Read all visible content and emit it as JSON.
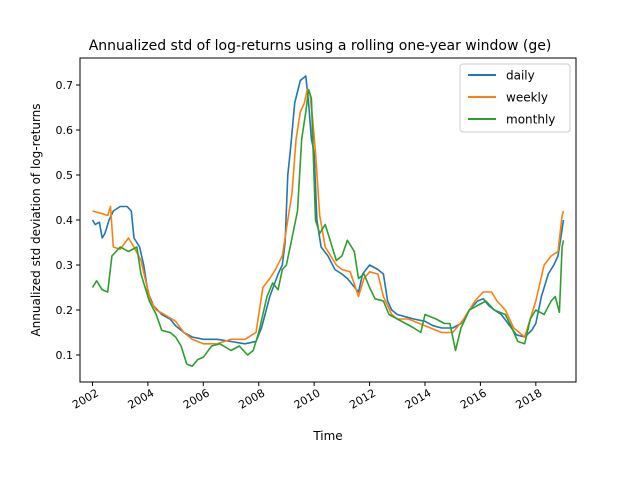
{
  "chart_data": {
    "type": "line",
    "title": "Annualized std of log-returns using a rolling one-year window (ge)",
    "xlabel": "Time",
    "ylabel": "Annualized std deviation of log-returns",
    "xlim": [
      2001.55,
      2019.45
    ],
    "ylim": [
      0.04,
      0.76
    ],
    "xticks": [
      2002,
      2004,
      2006,
      2008,
      2010,
      2012,
      2014,
      2016,
      2018
    ],
    "xtick_labels": [
      "2002",
      "2004",
      "2006",
      "2008",
      "2010",
      "2012",
      "2014",
      "2016",
      "2018"
    ],
    "yticks": [
      0.1,
      0.2,
      0.3,
      0.4,
      0.5,
      0.6,
      0.7
    ],
    "ytick_labels": [
      "0.1",
      "0.2",
      "0.3",
      "0.4",
      "0.5",
      "0.6",
      "0.7"
    ],
    "legend_position": "top-right",
    "grid": false,
    "series": [
      {
        "name": "daily",
        "color": "#1f77b4",
        "points": [
          [
            2002.0,
            0.4
          ],
          [
            2002.1,
            0.39
          ],
          [
            2002.25,
            0.395
          ],
          [
            2002.35,
            0.36
          ],
          [
            2002.45,
            0.37
          ],
          [
            2002.6,
            0.4
          ],
          [
            2002.75,
            0.42
          ],
          [
            2003.0,
            0.43
          ],
          [
            2003.25,
            0.43
          ],
          [
            2003.4,
            0.42
          ],
          [
            2003.5,
            0.36
          ],
          [
            2003.7,
            0.34
          ],
          [
            2003.85,
            0.3
          ],
          [
            2004.0,
            0.24
          ],
          [
            2004.2,
            0.21
          ],
          [
            2004.5,
            0.19
          ],
          [
            2004.8,
            0.18
          ],
          [
            2005.0,
            0.165
          ],
          [
            2005.3,
            0.15
          ],
          [
            2005.6,
            0.14
          ],
          [
            2006.0,
            0.135
          ],
          [
            2006.5,
            0.135
          ],
          [
            2007.0,
            0.13
          ],
          [
            2007.5,
            0.125
          ],
          [
            2007.9,
            0.13
          ],
          [
            2008.1,
            0.16
          ],
          [
            2008.4,
            0.23
          ],
          [
            2008.7,
            0.28
          ],
          [
            2008.85,
            0.3
          ],
          [
            2008.95,
            0.35
          ],
          [
            2009.05,
            0.5
          ],
          [
            2009.15,
            0.56
          ],
          [
            2009.3,
            0.66
          ],
          [
            2009.5,
            0.71
          ],
          [
            2009.7,
            0.72
          ],
          [
            2009.8,
            0.66
          ],
          [
            2009.9,
            0.58
          ],
          [
            2010.0,
            0.55
          ],
          [
            2010.1,
            0.4
          ],
          [
            2010.25,
            0.34
          ],
          [
            2010.5,
            0.32
          ],
          [
            2010.75,
            0.29
          ],
          [
            2011.0,
            0.28
          ],
          [
            2011.2,
            0.27
          ],
          [
            2011.4,
            0.255
          ],
          [
            2011.6,
            0.24
          ],
          [
            2011.75,
            0.28
          ],
          [
            2012.0,
            0.3
          ],
          [
            2012.3,
            0.29
          ],
          [
            2012.5,
            0.28
          ],
          [
            2012.65,
            0.22
          ],
          [
            2012.8,
            0.2
          ],
          [
            2013.0,
            0.19
          ],
          [
            2013.3,
            0.185
          ],
          [
            2013.6,
            0.18
          ],
          [
            2014.0,
            0.175
          ],
          [
            2014.3,
            0.165
          ],
          [
            2014.6,
            0.16
          ],
          [
            2015.0,
            0.16
          ],
          [
            2015.3,
            0.17
          ],
          [
            2015.6,
            0.2
          ],
          [
            2015.9,
            0.22
          ],
          [
            2016.1,
            0.225
          ],
          [
            2016.3,
            0.21
          ],
          [
            2016.5,
            0.2
          ],
          [
            2016.75,
            0.19
          ],
          [
            2017.0,
            0.17
          ],
          [
            2017.3,
            0.145
          ],
          [
            2017.6,
            0.14
          ],
          [
            2017.85,
            0.155
          ],
          [
            2018.0,
            0.17
          ],
          [
            2018.2,
            0.23
          ],
          [
            2018.45,
            0.28
          ],
          [
            2018.65,
            0.3
          ],
          [
            2018.8,
            0.32
          ],
          [
            2019.0,
            0.4
          ]
        ]
      },
      {
        "name": "weekly",
        "color": "#ff7f0e",
        "points": [
          [
            2002.0,
            0.42
          ],
          [
            2002.3,
            0.415
          ],
          [
            2002.55,
            0.41
          ],
          [
            2002.65,
            0.43
          ],
          [
            2002.75,
            0.34
          ],
          [
            2003.0,
            0.335
          ],
          [
            2003.3,
            0.36
          ],
          [
            2003.5,
            0.34
          ],
          [
            2003.75,
            0.31
          ],
          [
            2003.9,
            0.27
          ],
          [
            2004.1,
            0.22
          ],
          [
            2004.3,
            0.2
          ],
          [
            2004.6,
            0.19
          ],
          [
            2005.0,
            0.175
          ],
          [
            2005.3,
            0.15
          ],
          [
            2005.6,
            0.135
          ],
          [
            2006.0,
            0.125
          ],
          [
            2006.5,
            0.125
          ],
          [
            2007.0,
            0.135
          ],
          [
            2007.5,
            0.135
          ],
          [
            2007.9,
            0.15
          ],
          [
            2008.15,
            0.25
          ],
          [
            2008.4,
            0.27
          ],
          [
            2008.6,
            0.29
          ],
          [
            2008.85,
            0.32
          ],
          [
            2009.05,
            0.4
          ],
          [
            2009.2,
            0.46
          ],
          [
            2009.35,
            0.58
          ],
          [
            2009.5,
            0.64
          ],
          [
            2009.65,
            0.66
          ],
          [
            2009.75,
            0.69
          ],
          [
            2009.85,
            0.68
          ],
          [
            2009.95,
            0.62
          ],
          [
            2010.05,
            0.55
          ],
          [
            2010.2,
            0.41
          ],
          [
            2010.4,
            0.34
          ],
          [
            2010.6,
            0.32
          ],
          [
            2010.8,
            0.3
          ],
          [
            2011.0,
            0.29
          ],
          [
            2011.3,
            0.285
          ],
          [
            2011.6,
            0.23
          ],
          [
            2011.8,
            0.27
          ],
          [
            2012.0,
            0.285
          ],
          [
            2012.3,
            0.28
          ],
          [
            2012.5,
            0.23
          ],
          [
            2012.8,
            0.19
          ],
          [
            2013.0,
            0.18
          ],
          [
            2013.4,
            0.18
          ],
          [
            2013.8,
            0.17
          ],
          [
            2014.2,
            0.16
          ],
          [
            2014.6,
            0.15
          ],
          [
            2015.0,
            0.15
          ],
          [
            2015.4,
            0.18
          ],
          [
            2015.8,
            0.22
          ],
          [
            2016.1,
            0.24
          ],
          [
            2016.4,
            0.24
          ],
          [
            2016.6,
            0.22
          ],
          [
            2016.9,
            0.2
          ],
          [
            2017.2,
            0.16
          ],
          [
            2017.6,
            0.14
          ],
          [
            2018.0,
            0.22
          ],
          [
            2018.3,
            0.3
          ],
          [
            2018.55,
            0.32
          ],
          [
            2018.8,
            0.33
          ],
          [
            2018.95,
            0.41
          ],
          [
            2019.0,
            0.42
          ]
        ]
      },
      {
        "name": "monthly",
        "color": "#2ca02c",
        "points": [
          [
            2002.0,
            0.25
          ],
          [
            2002.15,
            0.265
          ],
          [
            2002.35,
            0.245
          ],
          [
            2002.55,
            0.24
          ],
          [
            2002.7,
            0.32
          ],
          [
            2003.0,
            0.34
          ],
          [
            2003.3,
            0.33
          ],
          [
            2003.6,
            0.34
          ],
          [
            2003.75,
            0.28
          ],
          [
            2003.9,
            0.25
          ],
          [
            2004.05,
            0.22
          ],
          [
            2004.3,
            0.19
          ],
          [
            2004.5,
            0.155
          ],
          [
            2004.8,
            0.15
          ],
          [
            2005.0,
            0.14
          ],
          [
            2005.2,
            0.12
          ],
          [
            2005.4,
            0.08
          ],
          [
            2005.6,
            0.075
          ],
          [
            2005.8,
            0.09
          ],
          [
            2006.0,
            0.095
          ],
          [
            2006.3,
            0.12
          ],
          [
            2006.6,
            0.125
          ],
          [
            2007.0,
            0.11
          ],
          [
            2007.3,
            0.12
          ],
          [
            2007.6,
            0.1
          ],
          [
            2007.8,
            0.11
          ],
          [
            2008.0,
            0.15
          ],
          [
            2008.3,
            0.23
          ],
          [
            2008.5,
            0.26
          ],
          [
            2008.7,
            0.245
          ],
          [
            2008.85,
            0.29
          ],
          [
            2009.0,
            0.3
          ],
          [
            2009.2,
            0.36
          ],
          [
            2009.4,
            0.42
          ],
          [
            2009.55,
            0.58
          ],
          [
            2009.7,
            0.64
          ],
          [
            2009.8,
            0.69
          ],
          [
            2009.9,
            0.67
          ],
          [
            2010.05,
            0.4
          ],
          [
            2010.2,
            0.37
          ],
          [
            2010.4,
            0.39
          ],
          [
            2010.6,
            0.35
          ],
          [
            2010.8,
            0.31
          ],
          [
            2011.0,
            0.32
          ],
          [
            2011.2,
            0.355
          ],
          [
            2011.45,
            0.33
          ],
          [
            2011.6,
            0.27
          ],
          [
            2011.8,
            0.28
          ],
          [
            2012.0,
            0.25
          ],
          [
            2012.2,
            0.225
          ],
          [
            2012.5,
            0.22
          ],
          [
            2012.7,
            0.19
          ],
          [
            2013.0,
            0.18
          ],
          [
            2013.3,
            0.17
          ],
          [
            2013.6,
            0.16
          ],
          [
            2013.85,
            0.15
          ],
          [
            2014.0,
            0.19
          ],
          [
            2014.4,
            0.18
          ],
          [
            2014.7,
            0.17
          ],
          [
            2014.9,
            0.17
          ],
          [
            2015.1,
            0.11
          ],
          [
            2015.3,
            0.16
          ],
          [
            2015.6,
            0.2
          ],
          [
            2015.9,
            0.21
          ],
          [
            2016.2,
            0.22
          ],
          [
            2016.5,
            0.2
          ],
          [
            2016.9,
            0.19
          ],
          [
            2017.1,
            0.165
          ],
          [
            2017.35,
            0.13
          ],
          [
            2017.6,
            0.125
          ],
          [
            2017.8,
            0.18
          ],
          [
            2018.0,
            0.2
          ],
          [
            2018.3,
            0.19
          ],
          [
            2018.55,
            0.22
          ],
          [
            2018.7,
            0.23
          ],
          [
            2018.85,
            0.195
          ],
          [
            2018.95,
            0.34
          ],
          [
            2019.0,
            0.355
          ]
        ]
      }
    ]
  }
}
